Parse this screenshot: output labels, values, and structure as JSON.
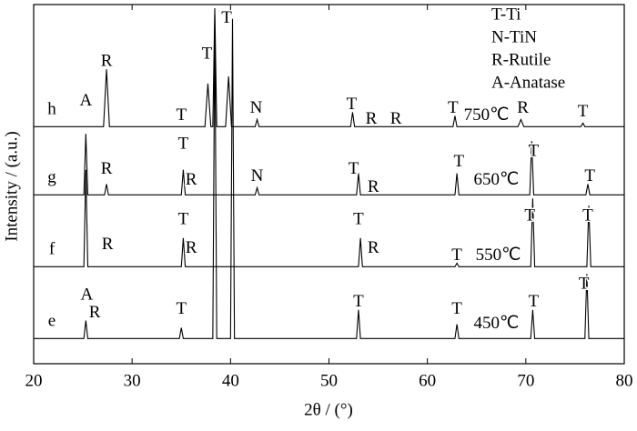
{
  "chart_data": {
    "type": "line",
    "xlabel": "2θ / (°)",
    "ylabel": "Intensity / (a.u.)",
    "xlim": [
      20,
      80
    ],
    "xticks": [
      20,
      30,
      40,
      50,
      60,
      70,
      80
    ],
    "ylim": [
      0,
      100
    ],
    "legend_notes": [
      "T-Ti",
      "N-TiN",
      "R-Rutile",
      "A-Anatase"
    ],
    "series": [
      {
        "name": "h",
        "color": "#000000",
        "x": [
          20,
          27.1,
          27.4,
          27.7,
          37.4,
          37.7,
          38.0,
          38.2,
          38.4,
          38.6,
          39.5,
          39.8,
          40.1,
          42.5,
          42.7,
          42.9,
          52.2,
          52.4,
          52.6,
          62.6,
          62.8,
          63.0,
          69.2,
          69.5,
          69.8,
          75.6,
          75.8,
          76.0,
          80
        ],
        "values": [
          66,
          66,
          82,
          66,
          66,
          78,
          66,
          66,
          99,
          66,
          66,
          80,
          66,
          66,
          68,
          66,
          66,
          70,
          66,
          66,
          69,
          66,
          66,
          68,
          66,
          66,
          67,
          66,
          66
        ]
      },
      {
        "name": "g",
        "color": "#000000",
        "x": [
          20,
          25.1,
          25.3,
          25.5,
          27.2,
          27.4,
          27.6,
          35.0,
          35.2,
          35.4,
          42.5,
          42.7,
          42.9,
          52.8,
          53.0,
          53.2,
          62.8,
          63.0,
          63.2,
          70.4,
          70.6,
          70.8,
          76.1,
          76.3,
          76.5,
          80
        ],
        "values": [
          47,
          47,
          64,
          47,
          47,
          50,
          47,
          47,
          54,
          47,
          47,
          49,
          47,
          47,
          53,
          47,
          47,
          53,
          47,
          47,
          62,
          47,
          47,
          50,
          47,
          47
        ]
      },
      {
        "name": "f",
        "color": "#000000",
        "x": [
          20,
          25.1,
          25.3,
          25.5,
          35.0,
          35.2,
          35.4,
          53.0,
          53.2,
          53.4,
          62.8,
          63.0,
          63.2,
          70.5,
          70.7,
          70.9,
          76.2,
          76.4,
          76.6,
          80
        ],
        "values": [
          27,
          27,
          54,
          27,
          27,
          35,
          27,
          27,
          35,
          27,
          27,
          28,
          27,
          27,
          46,
          27,
          27,
          44,
          27,
          27
        ]
      },
      {
        "name": "e",
        "color": "#000000",
        "x": [
          20,
          25.1,
          25.3,
          25.5,
          34.8,
          35.0,
          35.2,
          38.2,
          38.4,
          38.6,
          40.0,
          40.2,
          40.4,
          52.8,
          53.0,
          53.2,
          62.8,
          63.0,
          63.2,
          70.5,
          70.7,
          70.9,
          76.0,
          76.2,
          76.4,
          80
        ],
        "values": [
          7,
          7,
          12,
          7,
          7,
          10,
          7,
          7,
          97,
          7,
          7,
          96,
          7,
          7,
          15,
          7,
          7,
          11,
          7,
          7,
          15,
          7,
          7,
          25,
          7,
          7
        ]
      }
    ],
    "annotations": [
      {
        "text": "A",
        "x": 25.3,
        "y": 73
      },
      {
        "text": "R",
        "x": 27.4,
        "y": 84
      },
      {
        "text": "T",
        "x": 35.0,
        "y": 69
      },
      {
        "text": "T",
        "x": 37.6,
        "y": 86
      },
      {
        "text": "T",
        "x": 39.6,
        "y": 96
      },
      {
        "text": "N",
        "x": 42.6,
        "y": 71
      },
      {
        "text": "T",
        "x": 52.3,
        "y": 72
      },
      {
        "text": "R",
        "x": 54.3,
        "y": 68
      },
      {
        "text": "R",
        "x": 56.8,
        "y": 68
      },
      {
        "text": "T",
        "x": 62.6,
        "y": 71
      },
      {
        "text": "750℃",
        "x": 66.0,
        "y": 69
      },
      {
        "text": "R",
        "x": 69.7,
        "y": 71
      },
      {
        "text": "T",
        "x": 75.8,
        "y": 70
      },
      {
        "text": "R",
        "x": 27.4,
        "y": 54
      },
      {
        "text": "T",
        "x": 35.2,
        "y": 61
      },
      {
        "text": "R",
        "x": 36.0,
        "y": 51
      },
      {
        "text": "N",
        "x": 42.7,
        "y": 52
      },
      {
        "text": "T",
        "x": 52.5,
        "y": 54
      },
      {
        "text": "R",
        "x": 54.5,
        "y": 49
      },
      {
        "text": "T",
        "x": 63.2,
        "y": 56
      },
      {
        "text": "650℃",
        "x": 67.0,
        "y": 51
      },
      {
        "text": "T",
        "x": 70.8,
        "y": 59
      },
      {
        "text": "T",
        "x": 76.5,
        "y": 52
      },
      {
        "text": "R",
        "x": 27.5,
        "y": 33
      },
      {
        "text": "T",
        "x": 35.2,
        "y": 40
      },
      {
        "text": "R",
        "x": 36.0,
        "y": 32
      },
      {
        "text": "T",
        "x": 53.0,
        "y": 40
      },
      {
        "text": "R",
        "x": 54.5,
        "y": 32
      },
      {
        "text": "T",
        "x": 63.0,
        "y": 30
      },
      {
        "text": "550℃",
        "x": 67.2,
        "y": 30
      },
      {
        "text": "T",
        "x": 70.4,
        "y": 41
      },
      {
        "text": "T",
        "x": 76.3,
        "y": 41
      },
      {
        "text": "A",
        "x": 25.4,
        "y": 19
      },
      {
        "text": "R",
        "x": 26.2,
        "y": 14
      },
      {
        "text": "T",
        "x": 35.0,
        "y": 15
      },
      {
        "text": "T",
        "x": 53.0,
        "y": 17
      },
      {
        "text": "T",
        "x": 63.0,
        "y": 15
      },
      {
        "text": "450℃",
        "x": 67.0,
        "y": 11
      },
      {
        "text": "T",
        "x": 70.8,
        "y": 17
      },
      {
        "text": "T",
        "x": 75.9,
        "y": 22
      }
    ]
  }
}
